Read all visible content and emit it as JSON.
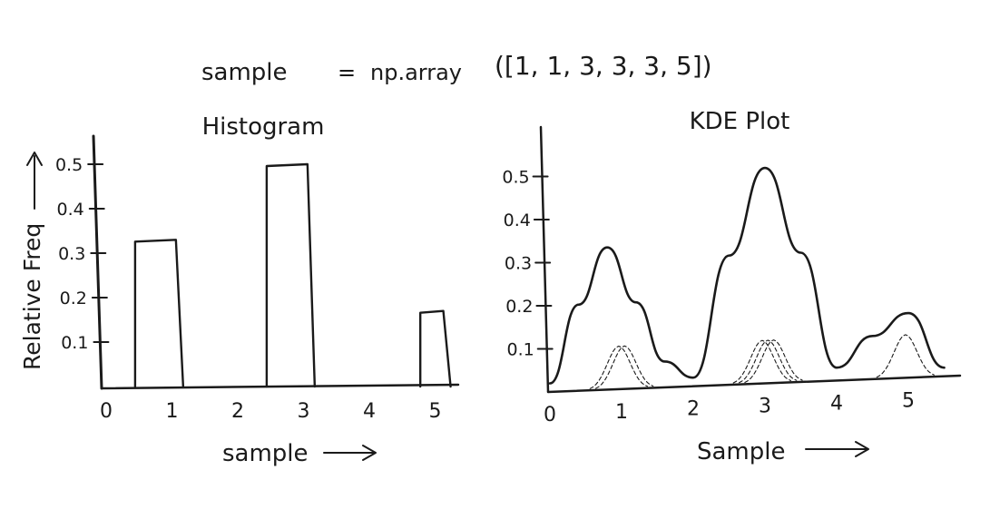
{
  "header": {
    "sample_label": "sample",
    "equals": "=",
    "expression": "np.array",
    "values_text": "([1, 1, 3, 3, 3, 5])"
  },
  "chart_data": [
    {
      "type": "bar",
      "title": "Histogram",
      "xlabel": "sample",
      "ylabel": "Relative Freq",
      "categories": [
        "1",
        "3",
        "5"
      ],
      "x": [
        1,
        3,
        5
      ],
      "values": [
        0.33,
        0.5,
        0.17
      ],
      "x_ticks": [
        "0",
        "1",
        "2",
        "3",
        "4",
        "5"
      ],
      "y_ticks": [
        "0.1",
        "0.2",
        "0.3",
        "0.4",
        "0.5"
      ],
      "xlim": [
        0,
        5.5
      ],
      "ylim": [
        0,
        0.55
      ],
      "grid": false
    },
    {
      "type": "line",
      "title": "KDE Plot",
      "xlabel": "Sample",
      "ylabel": "",
      "x_ticks": [
        "0",
        "1",
        "2",
        "3",
        "4",
        "5"
      ],
      "y_ticks": [
        "0.1",
        "0.2",
        "0.3",
        "0.4",
        "0.5"
      ],
      "xlim": [
        0,
        5.6
      ],
      "ylim": [
        0,
        0.55
      ],
      "grid": false,
      "data_points": [
        1,
        1,
        3,
        3,
        3,
        5
      ],
      "kernel_bandwidth": 0.4,
      "kernel_peak": 0.1,
      "series": [
        {
          "name": "KDE",
          "x": [
            0.0,
            0.4,
            0.8,
            1.2,
            1.6,
            2.0,
            2.5,
            3.0,
            3.5,
            4.0,
            4.5,
            5.0,
            5.5
          ],
          "y": [
            0.02,
            0.2,
            0.33,
            0.2,
            0.06,
            0.02,
            0.3,
            0.5,
            0.3,
            0.03,
            0.1,
            0.15,
            0.02
          ]
        }
      ]
    }
  ]
}
